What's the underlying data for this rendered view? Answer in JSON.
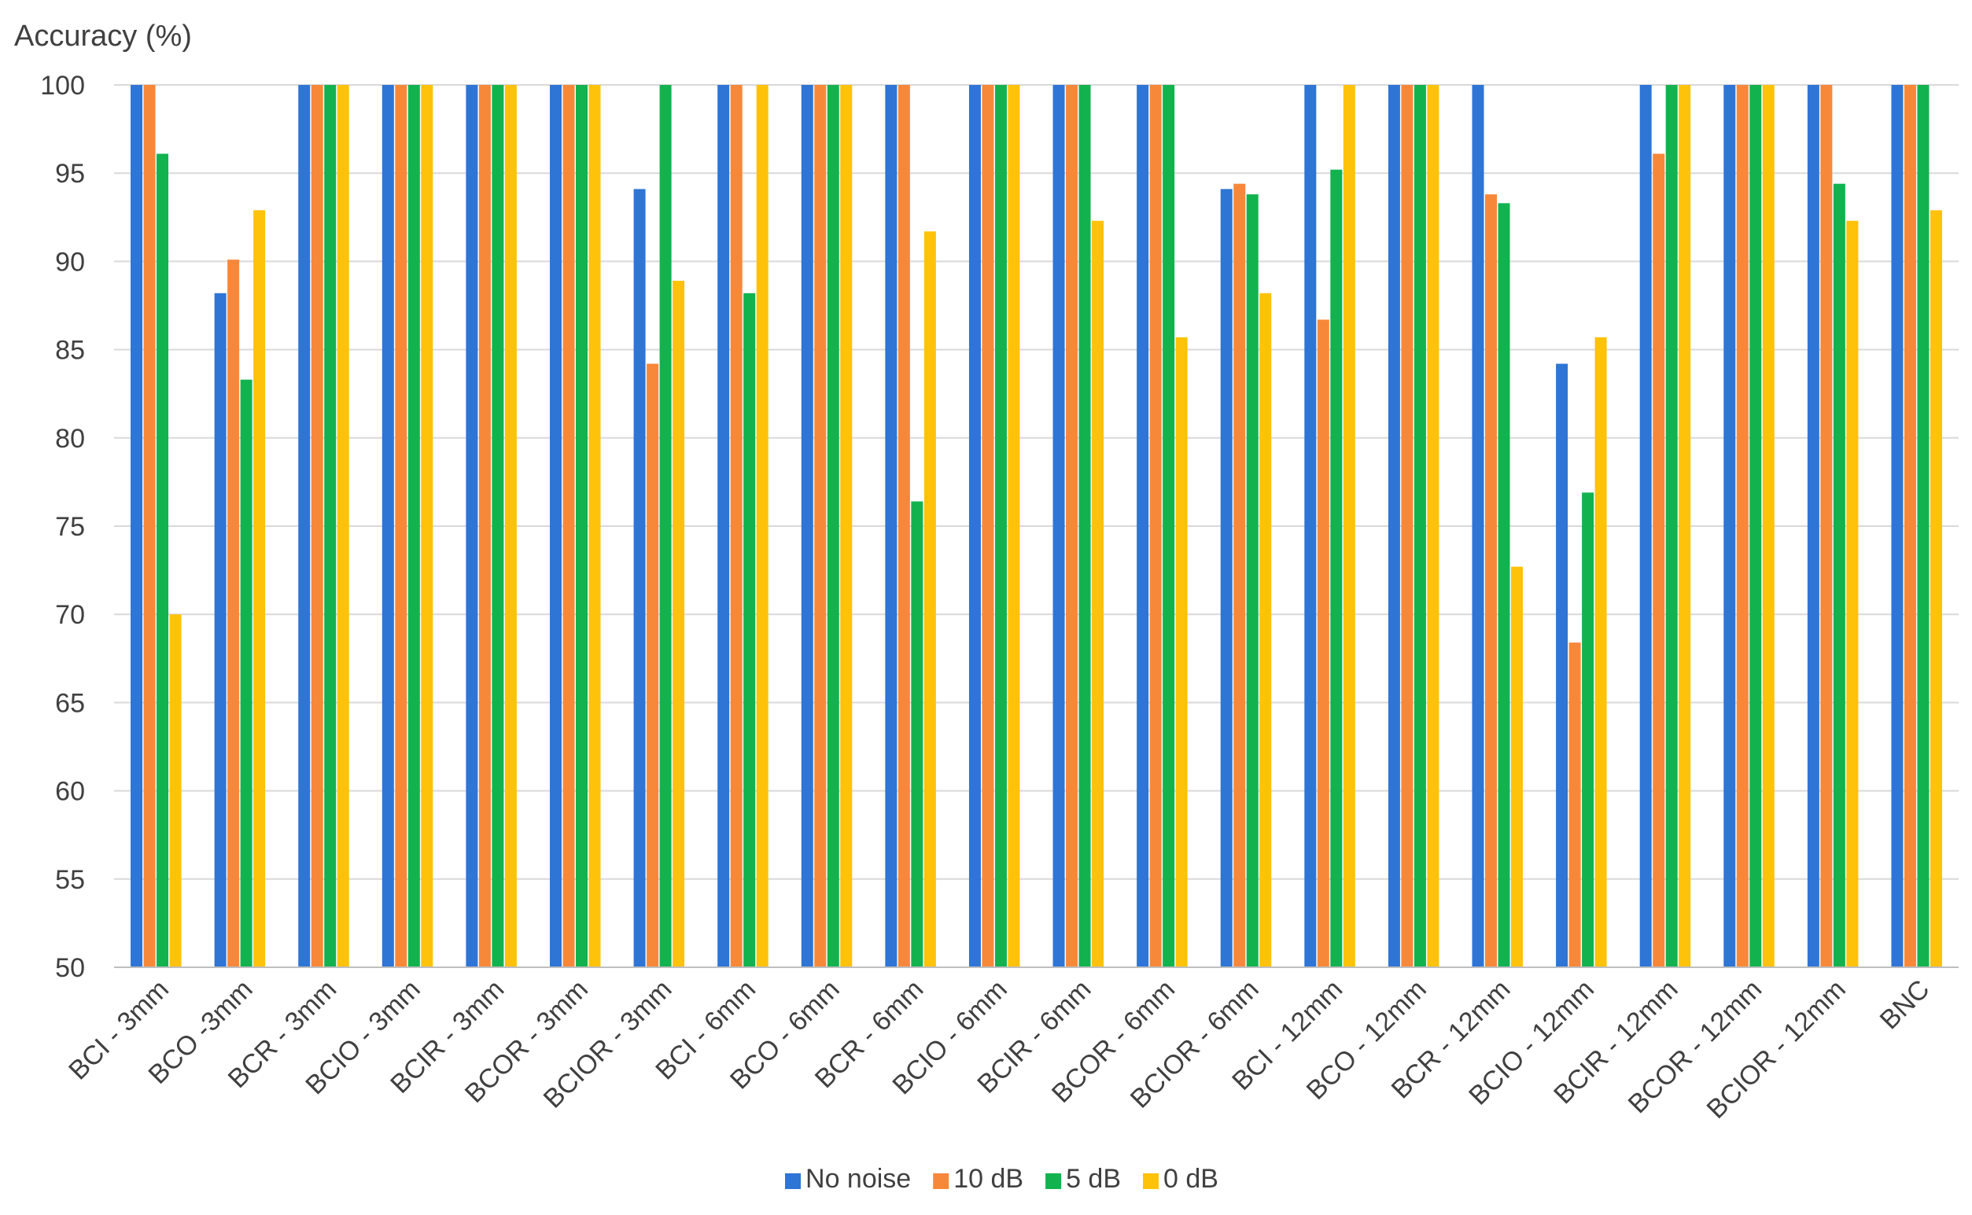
{
  "chart_data": {
    "type": "bar",
    "title": "",
    "xlabel": "",
    "ylabel": "Accuracy (%)",
    "ylim": [
      50,
      100
    ],
    "yticks": [
      50,
      55,
      60,
      65,
      70,
      75,
      80,
      85,
      90,
      95,
      100
    ],
    "grid": true,
    "legend_position": "bottom",
    "categories": [
      "BCI - 3mm",
      "BCO -3mm",
      "BCR - 3mm",
      "BCIO - 3mm",
      "BCIR - 3mm",
      "BCOR - 3mm",
      "BCIOR - 3mm",
      "BCI - 6mm",
      "BCO - 6mm",
      "BCR - 6mm",
      "BCIO - 6mm",
      "BCIR - 6mm",
      "BCOR - 6mm",
      "BCIOR - 6mm",
      "BCI - 12mm",
      "BCO - 12mm",
      "BCR - 12mm",
      "BCIO - 12mm",
      "BCIR - 12mm",
      "BCOR - 12mm",
      "BCIOR - 12mm",
      "BNC"
    ],
    "series": [
      {
        "name": "No noise",
        "color": "#2E75D6",
        "values": [
          100,
          88.2,
          100,
          100,
          100,
          100,
          94.1,
          100,
          100,
          100,
          100,
          100,
          100,
          94.1,
          100,
          100,
          100,
          84.2,
          100,
          100,
          100,
          100
        ]
      },
      {
        "name": "10 dB",
        "color": "#F7883A",
        "values": [
          100,
          90.1,
          100,
          100,
          100,
          100,
          84.2,
          100,
          100,
          100,
          100,
          100,
          100,
          94.4,
          86.7,
          100,
          93.8,
          68.4,
          96.1,
          100,
          100,
          100
        ]
      },
      {
        "name": "5 dB",
        "color": "#12B34F",
        "values": [
          96.1,
          83.3,
          100,
          100,
          100,
          100,
          100,
          88.2,
          100,
          76.4,
          100,
          100,
          100,
          93.8,
          95.2,
          100,
          93.3,
          76.9,
          100,
          100,
          94.4,
          100
        ]
      },
      {
        "name": "0 dB",
        "color": "#FFC20A",
        "values": [
          70,
          92.9,
          100,
          100,
          100,
          100,
          88.9,
          100,
          100,
          91.7,
          100,
          92.3,
          85.7,
          88.2,
          100,
          100,
          72.7,
          85.7,
          100,
          100,
          92.3,
          92.9
        ]
      }
    ]
  }
}
